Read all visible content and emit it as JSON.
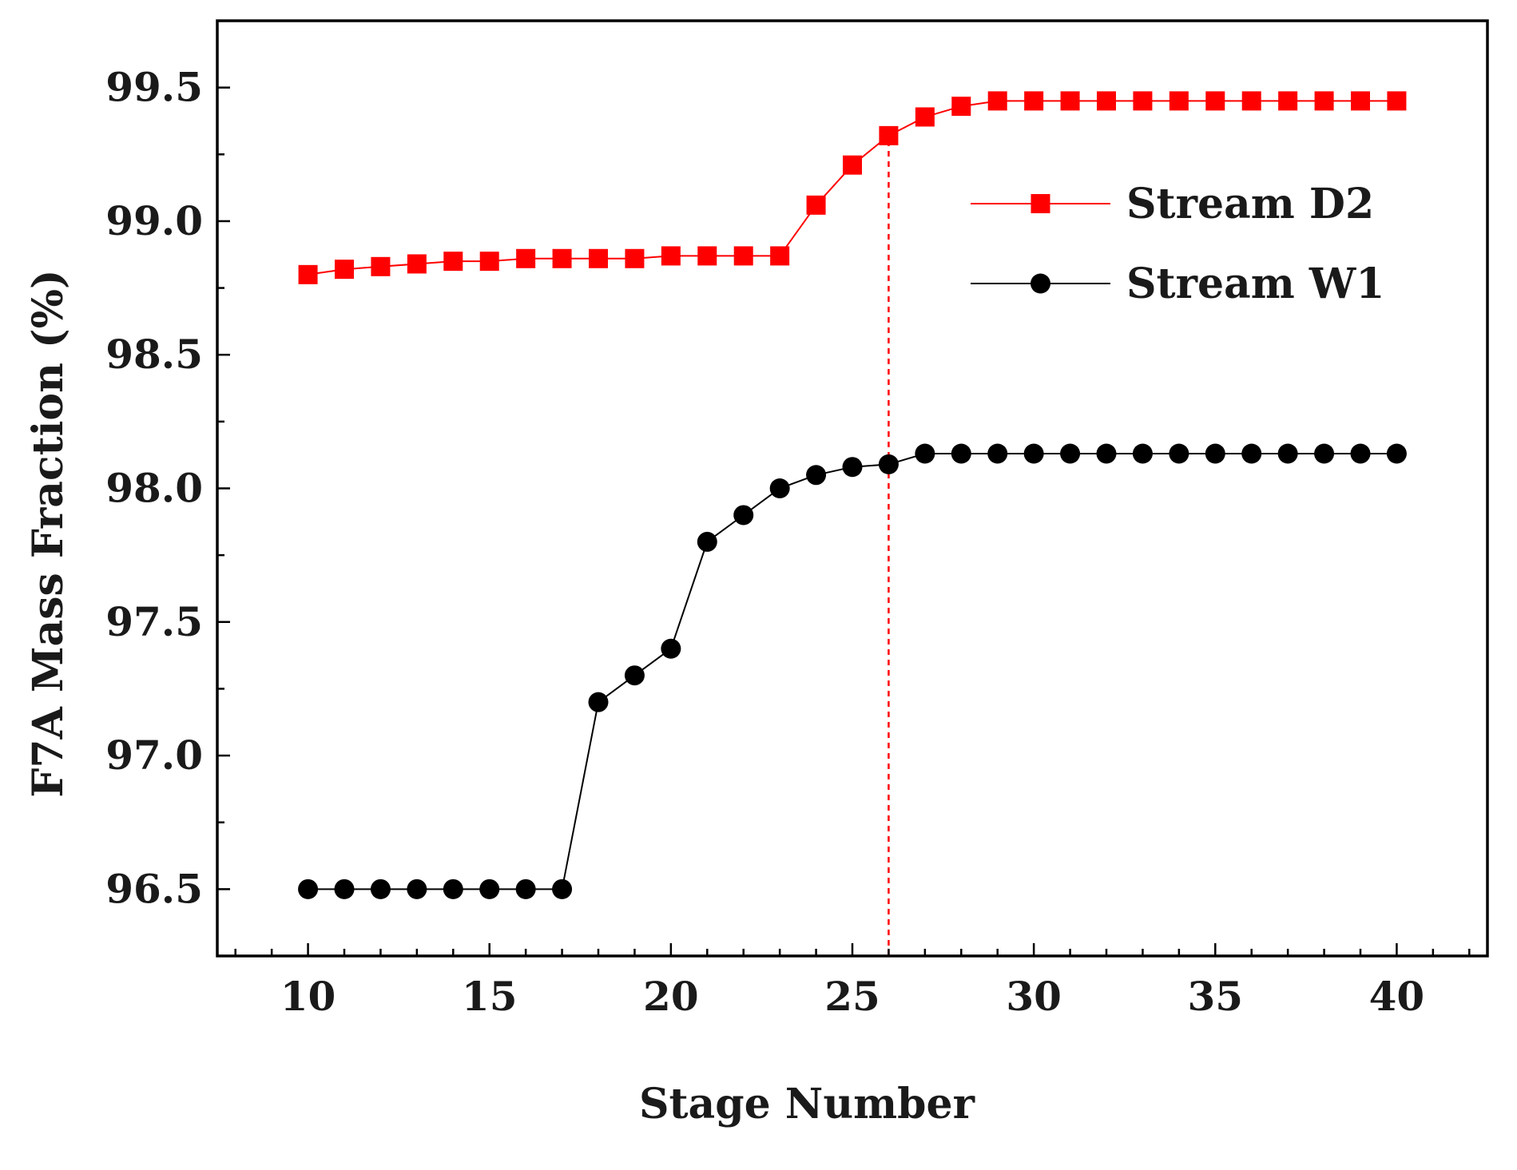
{
  "chart_data": {
    "type": "line",
    "title": "",
    "xlabel": "Stage Number",
    "ylabel": "F7A Mass Fraction (%)",
    "xlim": [
      7.5,
      42.5
    ],
    "ylim": [
      96.25,
      99.75
    ],
    "xticks": [
      10,
      15,
      20,
      25,
      30,
      35,
      40
    ],
    "xtick_labels": [
      "10",
      "15",
      "20",
      "25",
      "30",
      "35",
      "40"
    ],
    "yticks": [
      96.5,
      97.0,
      97.5,
      98.0,
      98.5,
      99.0,
      99.5
    ],
    "ytick_labels": [
      "96.5",
      "97.0",
      "97.5",
      "98.0",
      "98.5",
      "99.0",
      "99.5"
    ],
    "grid": false,
    "legend_position": "top-right",
    "reference_line": {
      "x": 26,
      "from_y": 96.25,
      "to_y": 99.32,
      "style": "dashed",
      "color": "#ff0000"
    },
    "series": [
      {
        "name": "Stream D2",
        "color": "#ff0000",
        "marker": "square",
        "x": [
          10,
          11,
          12,
          13,
          14,
          15,
          16,
          17,
          18,
          19,
          20,
          21,
          22,
          23,
          24,
          25,
          26,
          27,
          28,
          29,
          30,
          31,
          32,
          33,
          34,
          35,
          36,
          37,
          38,
          39,
          40
        ],
        "values": [
          98.8,
          98.82,
          98.83,
          98.84,
          98.85,
          98.85,
          98.86,
          98.86,
          98.86,
          98.86,
          98.87,
          98.87,
          98.87,
          98.87,
          99.06,
          99.21,
          99.32,
          99.39,
          99.43,
          99.45,
          99.45,
          99.45,
          99.45,
          99.45,
          99.45,
          99.45,
          99.45,
          99.45,
          99.45,
          99.45,
          99.45
        ]
      },
      {
        "name": "Stream W1",
        "color": "#000000",
        "marker": "circle",
        "x": [
          10,
          11,
          12,
          13,
          14,
          15,
          16,
          17,
          18,
          19,
          20,
          21,
          22,
          23,
          24,
          25,
          26,
          27,
          28,
          29,
          30,
          31,
          32,
          33,
          34,
          35,
          36,
          37,
          38,
          39,
          40
        ],
        "values": [
          96.5,
          96.5,
          96.5,
          96.5,
          96.5,
          96.5,
          96.5,
          96.5,
          97.2,
          97.3,
          97.4,
          97.8,
          97.9,
          98.0,
          98.05,
          98.08,
          98.09,
          98.13,
          98.13,
          98.13,
          98.13,
          98.13,
          98.13,
          98.13,
          98.13,
          98.13,
          98.13,
          98.13,
          98.13,
          98.13,
          98.13
        ]
      }
    ]
  }
}
